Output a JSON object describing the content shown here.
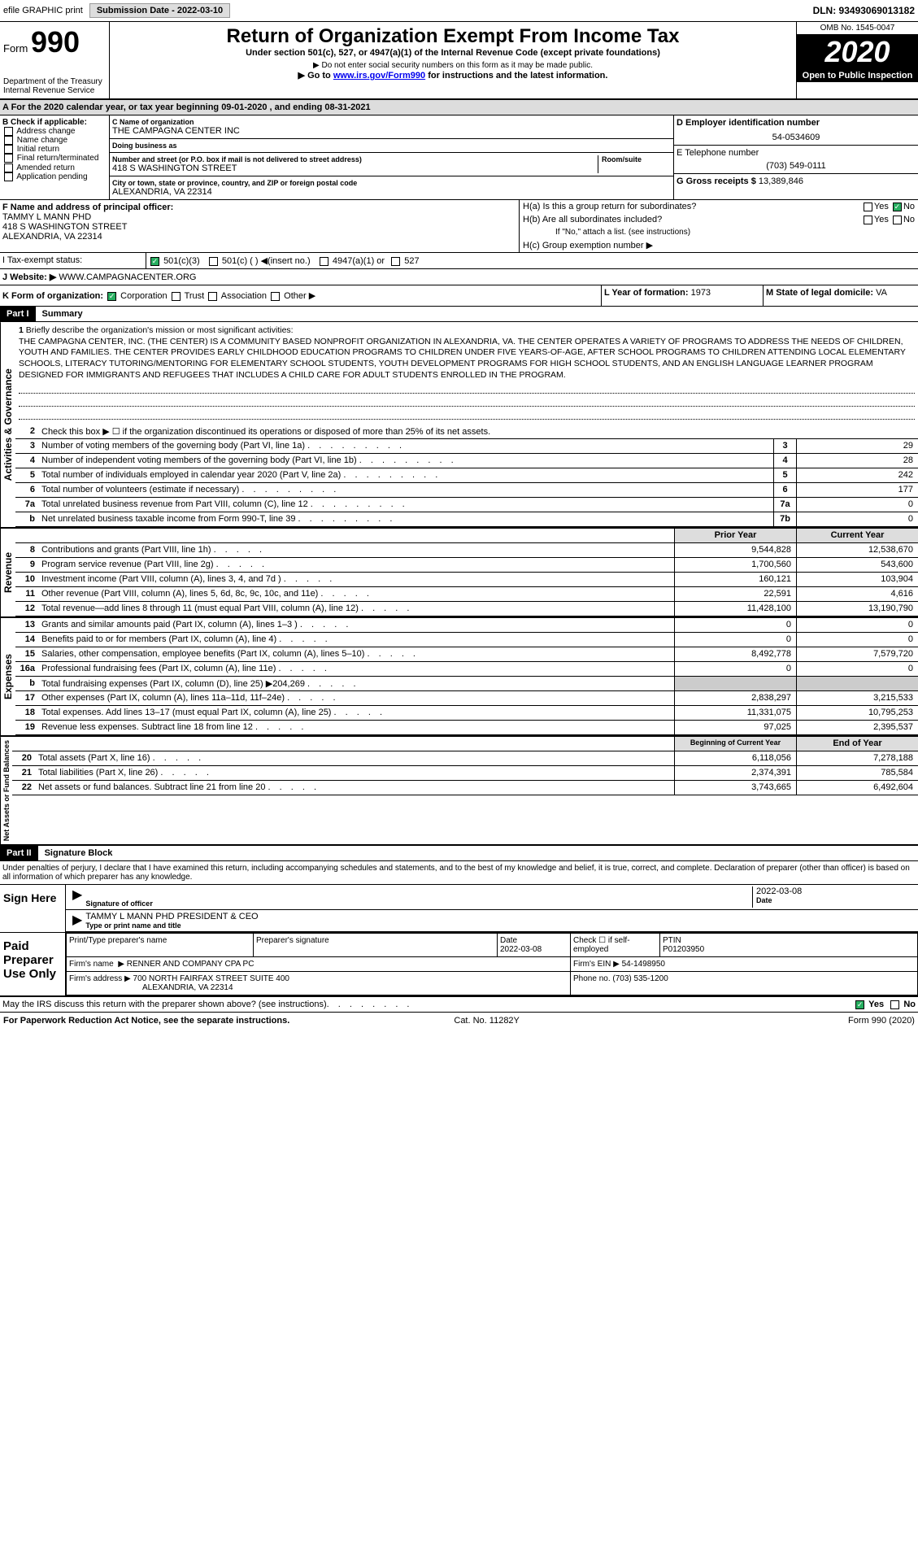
{
  "topbar": {
    "efile": "efile GRAPHIC print",
    "subdate_lbl": "Submission Date - 2022-03-10",
    "dln": "DLN: 93493069013182"
  },
  "header": {
    "form_prefix": "Form",
    "form_num": "990",
    "dept": "Department of the Treasury",
    "irs": "Internal Revenue Service",
    "service_code": "Service",
    "title": "Return of Organization Exempt From Income Tax",
    "sub": "Under section 501(c), 527, or 4947(a)(1) of the Internal Revenue Code (except private foundations)",
    "note1": "▶ Do not enter social security numbers on this form as it may be made public.",
    "note2": "▶ Go to ",
    "note2_link": "www.irs.gov/Form990",
    "note2_tail": " for instructions and the latest information.",
    "omb": "OMB No. 1545-0047",
    "year": "2020",
    "open": "Open to Public Inspection"
  },
  "a": {
    "text": "A For the 2020 calendar year, or tax year beginning 09-01-2020    , and ending 08-31-2021"
  },
  "b": {
    "check_lbl": "B Check if applicable:",
    "items": [
      "Address change",
      "Name change",
      "Initial return",
      "Final return/terminated",
      "Amended return",
      "Application pending"
    ]
  },
  "c": {
    "name_lbl": "C Name of organization",
    "name": "THE CAMPAGNA CENTER INC",
    "dba_lbl": "Doing business as",
    "dba": "",
    "street_lbl": "Number and street (or P.O. box if mail is not delivered to street address)",
    "street": "418 S WASHINGTON STREET",
    "room_lbl": "Room/suite",
    "room": "",
    "city_lbl": "City or town, state or province, country, and ZIP or foreign postal code",
    "city": "ALEXANDRIA, VA  22314"
  },
  "d": {
    "lbl": "D Employer identification number",
    "val": "54-0534609"
  },
  "e": {
    "lbl": "E Telephone number",
    "val": "(703) 549-0111"
  },
  "g": {
    "lbl": "G Gross receipts $",
    "val": "13,389,846"
  },
  "f": {
    "lbl": "F  Name and address of principal officer:",
    "name": "TAMMY L MANN PHD",
    "addr1": "418 S WASHINGTON STREET",
    "addr2": "ALEXANDRIA, VA  22314"
  },
  "h": {
    "a": "H(a)  Is this a group return for subordinates?",
    "a_yes": "Yes",
    "a_no": "No",
    "b": "H(b)  Are all subordinates included?",
    "b_yes": "Yes",
    "b_no": "No",
    "b_note": "If \"No,\" attach a list. (see instructions)",
    "c": "H(c)  Group exemption number ▶"
  },
  "i": {
    "lbl": "I    Tax-exempt status:",
    "o1": "501(c)(3)",
    "o2": "501(c) (   ) ◀(insert no.)",
    "o3": "4947(a)(1) or",
    "o4": "527"
  },
  "j": {
    "lbl": "J    Website: ▶",
    "val": "WWW.CAMPAGNACENTER.ORG"
  },
  "k": {
    "lbl": "K Form of organization:",
    "o1": "Corporation",
    "o2": "Trust",
    "o3": "Association",
    "o4": "Other ▶"
  },
  "l": {
    "lbl": "L Year of formation:",
    "val": "1973"
  },
  "m": {
    "lbl": "M State of legal domicile:",
    "val": "VA"
  },
  "part1": {
    "hdr": "Part I",
    "title": "Summary"
  },
  "summary": {
    "s1_lbl": "1",
    "s1_txt": "Briefly describe the organization's mission or most significant activities:",
    "mission": "THE CAMPAGNA CENTER, INC. (THE CENTER) IS A COMMUNITY BASED NONPROFIT ORGANIZATION IN ALEXANDRIA, VA. THE CENTER OPERATES A VARIETY OF PROGRAMS TO ADDRESS THE NEEDS OF CHILDREN, YOUTH AND FAMILIES. THE CENTER PROVIDES EARLY CHILDHOOD EDUCATION PROGRAMS TO CHILDREN UNDER FIVE YEARS-OF-AGE, AFTER SCHOOL PROGRAMS TO CHILDREN ATTENDING LOCAL ELEMENTARY SCHOOLS, LITERACY TUTORING/MENTORING FOR ELEMENTARY SCHOOL STUDENTS, YOUTH DEVELOPMENT PROGRAMS FOR HIGH SCHOOL STUDENTS, AND AN ENGLISH LANGUAGE LEARNER PROGRAM DESIGNED FOR IMMIGRANTS AND REFUGEES THAT INCLUDES A CHILD CARE FOR ADULT STUDENTS ENROLLED IN THE PROGRAM.",
    "s2_txt": "Check this box ▶ ☐ if the organization discontinued its operations or disposed of more than 25% of its net assets."
  },
  "gov_lines": [
    {
      "n": "3",
      "t": "Number of voting members of the governing body (Part VI, line 1a)",
      "box": "3",
      "v": "29"
    },
    {
      "n": "4",
      "t": "Number of independent voting members of the governing body (Part VI, line 1b)",
      "box": "4",
      "v": "28"
    },
    {
      "n": "5",
      "t": "Total number of individuals employed in calendar year 2020 (Part V, line 2a)",
      "box": "5",
      "v": "242"
    },
    {
      "n": "6",
      "t": "Total number of volunteers (estimate if necessary)",
      "box": "6",
      "v": "177"
    },
    {
      "n": "7a",
      "t": "Total unrelated business revenue from Part VIII, column (C), line 12",
      "box": "7a",
      "v": "0"
    },
    {
      "n": "b",
      "t": "Net unrelated business taxable income from Form 990-T, line 39",
      "box": "7b",
      "v": "0"
    }
  ],
  "col_hdrs": {
    "prior": "Prior Year",
    "current": "Current Year"
  },
  "rev_lines": [
    {
      "n": "8",
      "t": "Contributions and grants (Part VIII, line 1h)",
      "p": "9,544,828",
      "c": "12,538,670"
    },
    {
      "n": "9",
      "t": "Program service revenue (Part VIII, line 2g)",
      "p": "1,700,560",
      "c": "543,600"
    },
    {
      "n": "10",
      "t": "Investment income (Part VIII, column (A), lines 3, 4, and 7d )",
      "p": "160,121",
      "c": "103,904"
    },
    {
      "n": "11",
      "t": "Other revenue (Part VIII, column (A), lines 5, 6d, 8c, 9c, 10c, and 11e)",
      "p": "22,591",
      "c": "4,616"
    },
    {
      "n": "12",
      "t": "Total revenue—add lines 8 through 11 (must equal Part VIII, column (A), line 12)",
      "p": "11,428,100",
      "c": "13,190,790"
    }
  ],
  "exp_lines": [
    {
      "n": "13",
      "t": "Grants and similar amounts paid (Part IX, column (A), lines 1–3 )",
      "p": "0",
      "c": "0"
    },
    {
      "n": "14",
      "t": "Benefits paid to or for members (Part IX, column (A), line 4)",
      "p": "0",
      "c": "0"
    },
    {
      "n": "15",
      "t": "Salaries, other compensation, employee benefits (Part IX, column (A), lines 5–10)",
      "p": "8,492,778",
      "c": "7,579,720"
    },
    {
      "n": "16a",
      "t": "Professional fundraising fees (Part IX, column (A), line 11e)",
      "p": "0",
      "c": "0"
    },
    {
      "n": "b",
      "t": "Total fundraising expenses (Part IX, column (D), line 25) ▶204,269",
      "p": "",
      "c": "",
      "gray": true
    },
    {
      "n": "17",
      "t": "Other expenses (Part IX, column (A), lines 11a–11d, 11f–24e)",
      "p": "2,838,297",
      "c": "3,215,533"
    },
    {
      "n": "18",
      "t": "Total expenses. Add lines 13–17 (must equal Part IX, column (A), line 25)",
      "p": "11,331,075",
      "c": "10,795,253"
    },
    {
      "n": "19",
      "t": "Revenue less expenses. Subtract line 18 from line 12",
      "p": "97,025",
      "c": "2,395,537"
    }
  ],
  "net_hdrs": {
    "beg": "Beginning of Current Year",
    "end": "End of Year"
  },
  "net_lines": [
    {
      "n": "20",
      "t": "Total assets (Part X, line 16)",
      "p": "6,118,056",
      "c": "7,278,188"
    },
    {
      "n": "21",
      "t": "Total liabilities (Part X, line 26)",
      "p": "2,374,391",
      "c": "785,584"
    },
    {
      "n": "22",
      "t": "Net assets or fund balances. Subtract line 21 from line 20",
      "p": "3,743,665",
      "c": "6,492,604"
    }
  ],
  "verts": {
    "gov": "Activities & Governance",
    "rev": "Revenue",
    "exp": "Expenses",
    "net": "Net Assets or Fund Balances"
  },
  "part2": {
    "hdr": "Part II",
    "title": "Signature Block"
  },
  "perjury": "Under penalties of perjury, I declare that I have examined this return, including accompanying schedules and statements, and to the best of my knowledge and belief, it is true, correct, and complete. Declaration of preparer (other than officer) is based on all information of which preparer has any knowledge.",
  "sign": {
    "lbl": "Sign Here",
    "sig_of": "Signature of officer",
    "date": "2022-03-08",
    "date_lbl": "Date",
    "name": "TAMMY L MANN PHD  PRESIDENT & CEO",
    "name_lbl": "Type or print name and title"
  },
  "prep": {
    "lbl": "Paid Preparer Use Only",
    "h1": "Print/Type preparer's name",
    "h2": "Preparer's signature",
    "h3": "Date",
    "h3v": "2022-03-08",
    "h4": "Check ☐ if self-employed",
    "h5": "PTIN",
    "h5v": "P01203950",
    "firm_lbl": "Firm's name",
    "firm": "▶ RENNER AND COMPANY CPA PC",
    "ein_lbl": "Firm's EIN ▶",
    "ein": "54-1498950",
    "addr_lbl": "Firm's address",
    "addr": "▶ 700 NORTH FAIRFAX STREET SUITE 400",
    "addr2": "ALEXANDRIA, VA  22314",
    "phone_lbl": "Phone no.",
    "phone": "(703) 535-1200"
  },
  "discuss": {
    "txt": "May the IRS discuss this return with the preparer shown above? (see instructions)",
    "yes": "Yes",
    "no": "No"
  },
  "footer": {
    "l": "For Paperwork Reduction Act Notice, see the separate instructions.",
    "c": "Cat. No. 11282Y",
    "r": "Form 990 (2020)"
  }
}
